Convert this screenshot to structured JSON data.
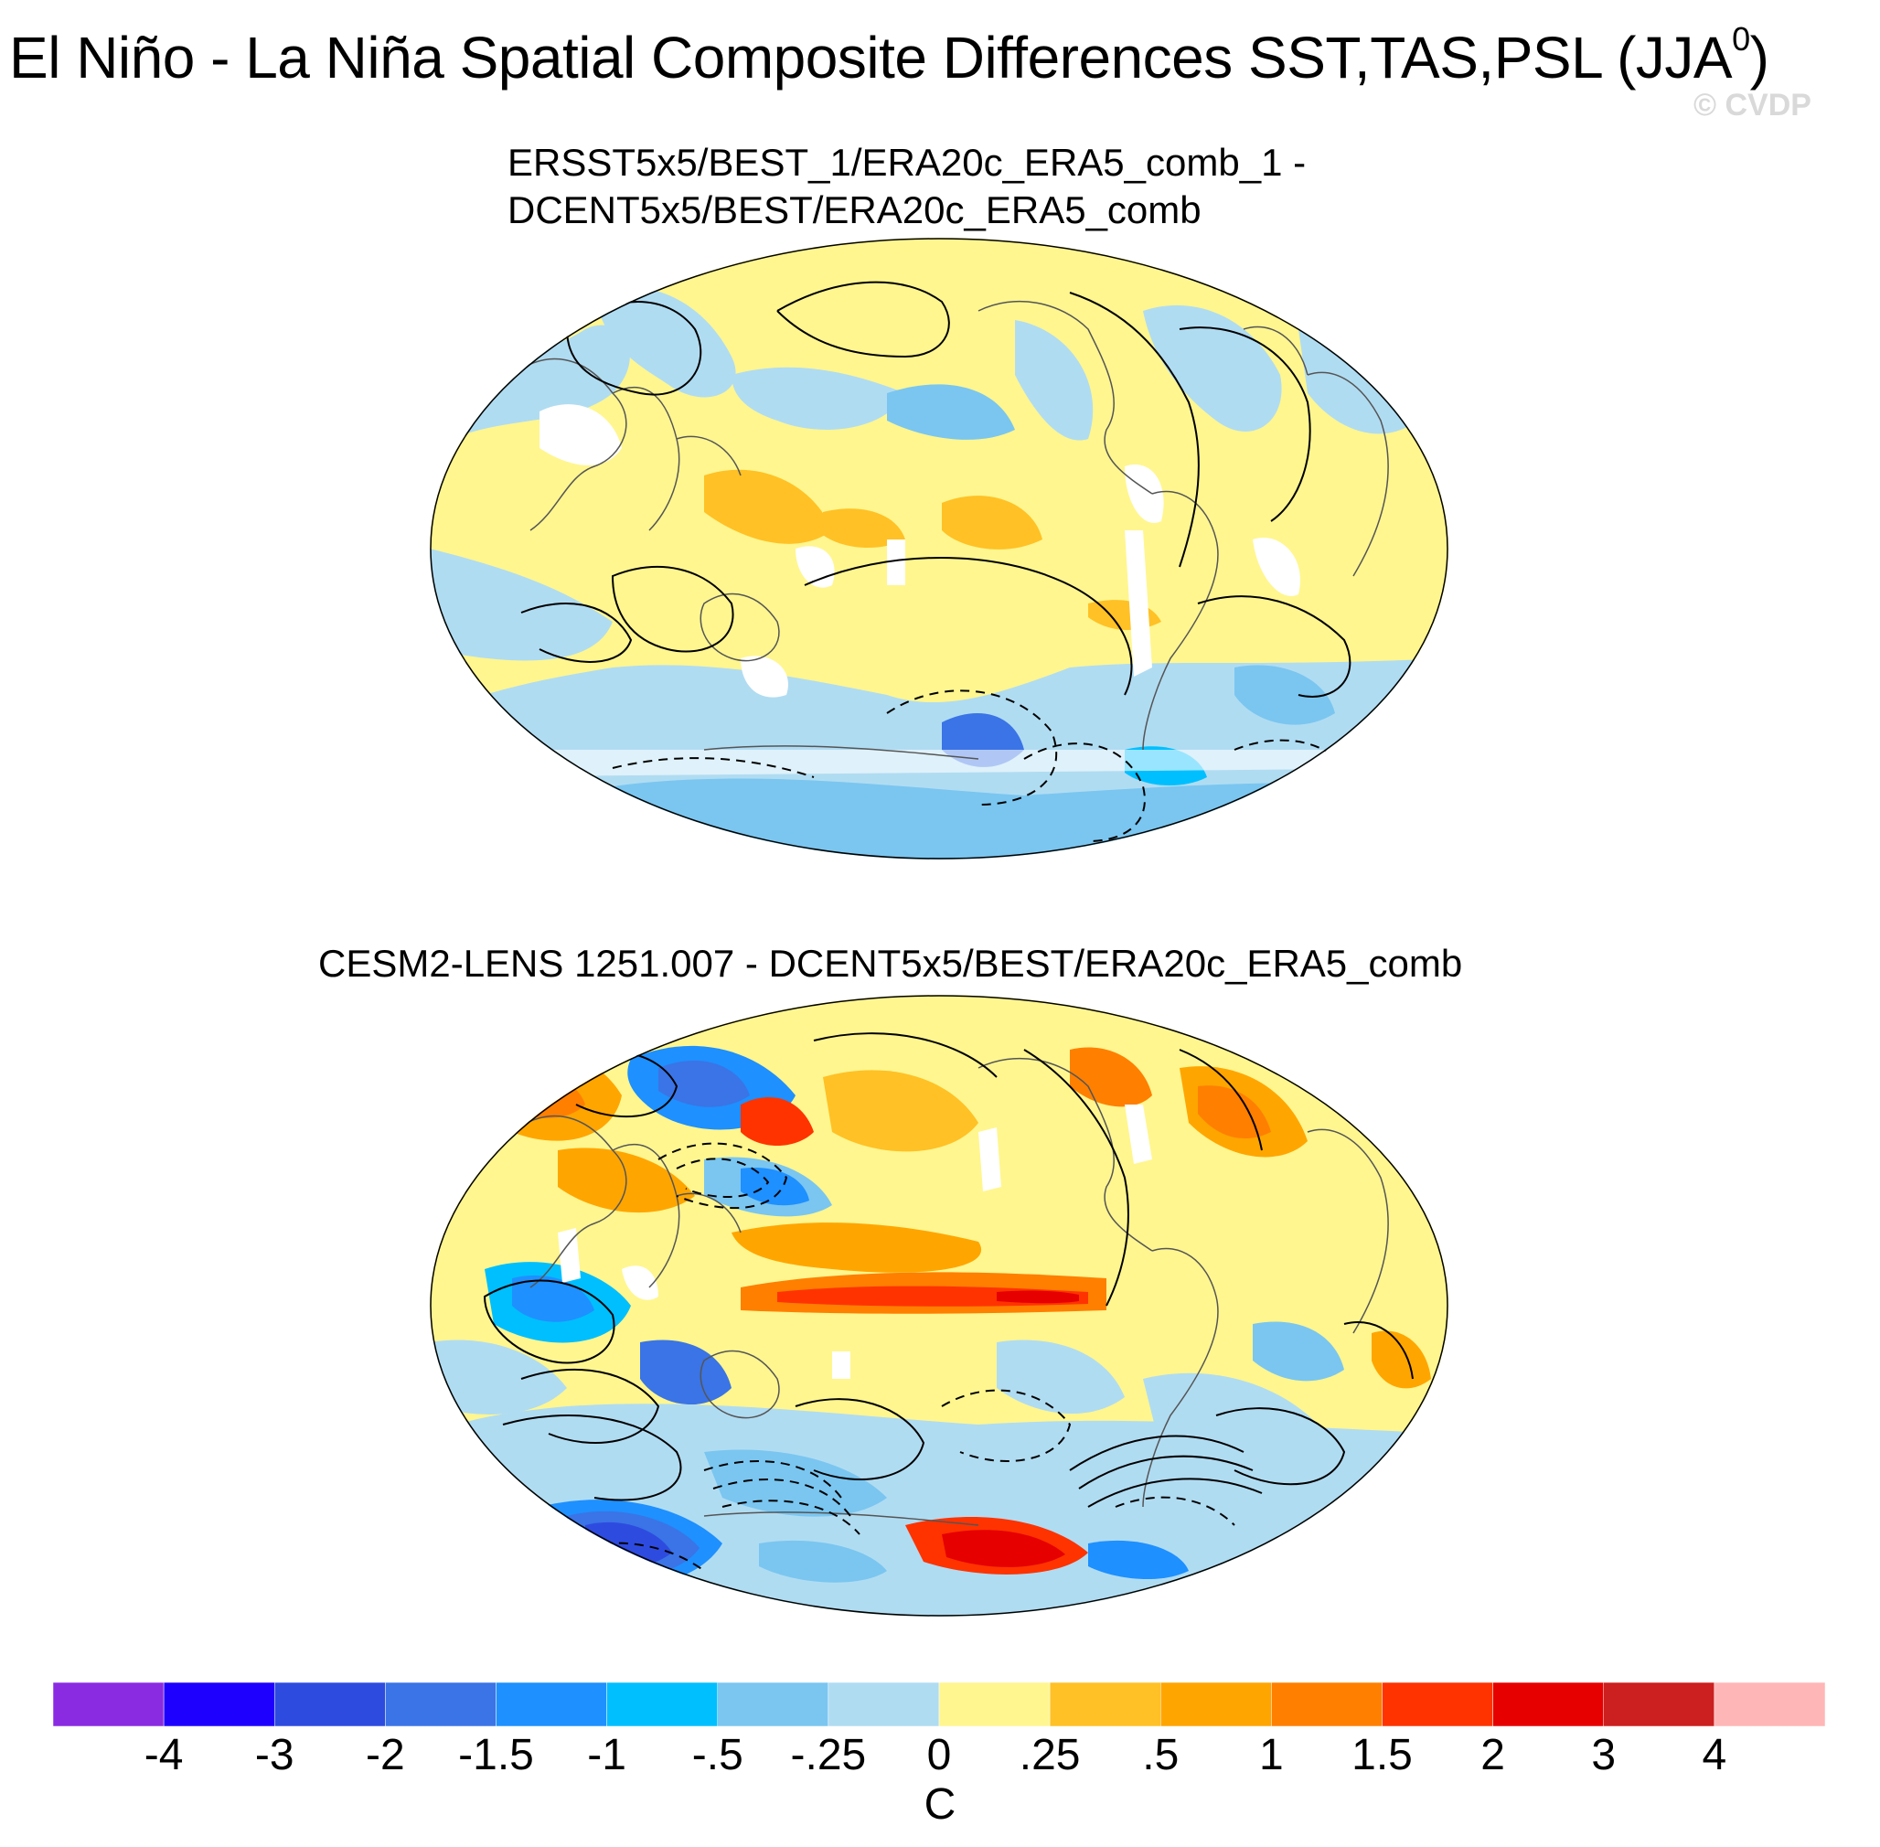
{
  "figure": {
    "title_main": "El Niño - La Niña Spatial Composite Differences SST,TAS,PSL (JJA",
    "title_sup": "0",
    "title_close": ")",
    "watermark": "© CVDP"
  },
  "panels": [
    {
      "title_line1": "ERSST5x5/BEST_1/ERA20c_ERA5_comb_1 -",
      "title_line2": "DCENT5x5/BEST/ERA20c_ERA5_comb"
    },
    {
      "title_line1": "CESM2-LENS 1251.007 - DCENT5x5/BEST/ERA20c_ERA5_comb"
    }
  ],
  "colorbar": {
    "labels": [
      "-4",
      "-3",
      "-2",
      "-1.5",
      "-1",
      "-.5",
      "-.25",
      "0",
      ".25",
      ".5",
      "1",
      "1.5",
      "2",
      "3",
      "4"
    ],
    "colors": [
      "#8a2be2",
      "#1e00ff",
      "#2e4be0",
      "#3a74e6",
      "#1e90ff",
      "#00bfff",
      "#7ac6f0",
      "#b0dcf2",
      "#fff68f",
      "#ffc125",
      "#ffa500",
      "#ff7f00",
      "#ff3300",
      "#e60000",
      "#cc1f1f",
      "#ffb6b6"
    ],
    "units": "C"
  }
}
